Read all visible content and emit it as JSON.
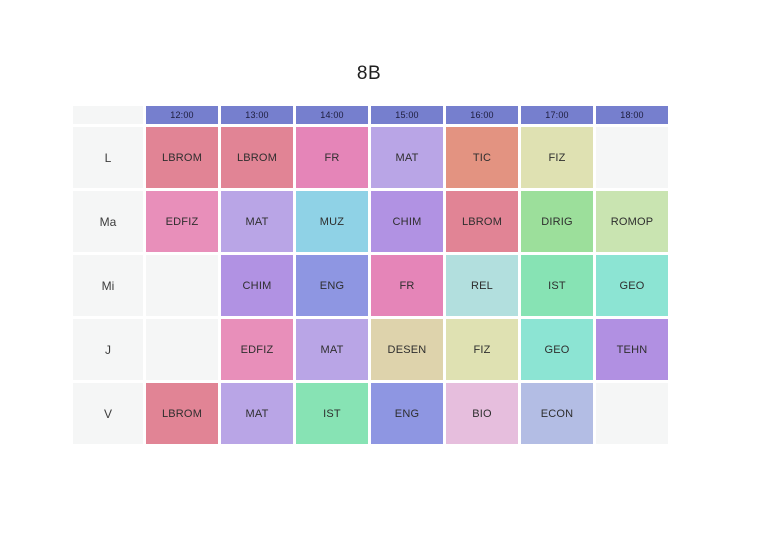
{
  "title": "8B",
  "colors": {
    "page_bg": "#ffffff",
    "header_bg": "#767fce",
    "header_text": "#1d1d3d",
    "day_cell_bg": "#f5f6f6",
    "day_text": "#3c3c3c",
    "empty_cell_bg": "#f5f6f6",
    "cell_text": "#2e2e2e"
  },
  "timetable": {
    "times": [
      "12:00",
      "13:00",
      "14:00",
      "15:00",
      "16:00",
      "17:00",
      "18:00"
    ],
    "days": [
      "L",
      "Ma",
      "Mi",
      "J",
      "V"
    ],
    "rows": [
      {
        "day": "L",
        "cells": [
          {
            "subject": "LBROM",
            "color": "#e18495"
          },
          {
            "subject": "LBROM",
            "color": "#e18495"
          },
          {
            "subject": "FR",
            "color": "#e585b8"
          },
          {
            "subject": "MAT",
            "color": "#b9a5e6"
          },
          {
            "subject": "TIC",
            "color": "#e39381"
          },
          {
            "subject": "FIZ",
            "color": "#dfe1b2"
          },
          null
        ]
      },
      {
        "day": "Ma",
        "cells": [
          {
            "subject": "EDFIZ",
            "color": "#e88fba"
          },
          {
            "subject": "MAT",
            "color": "#b9a5e6"
          },
          {
            "subject": "MUZ",
            "color": "#8fd2e6"
          },
          {
            "subject": "CHIM",
            "color": "#b192e3"
          },
          {
            "subject": "LBROM",
            "color": "#e18495"
          },
          {
            "subject": "DIRIG",
            "color": "#9cdf9b"
          },
          {
            "subject": "ROMOP",
            "color": "#c9e4b1"
          }
        ]
      },
      {
        "day": "Mi",
        "cells": [
          null,
          {
            "subject": "CHIM",
            "color": "#b192e3"
          },
          {
            "subject": "ENG",
            "color": "#8e96e2"
          },
          {
            "subject": "FR",
            "color": "#e585b8"
          },
          {
            "subject": "REL",
            "color": "#b2dfde"
          },
          {
            "subject": "IST",
            "color": "#87e3b4"
          },
          {
            "subject": "GEO",
            "color": "#8ce4d3"
          }
        ]
      },
      {
        "day": "J",
        "cells": [
          null,
          {
            "subject": "EDFIZ",
            "color": "#e88fba"
          },
          {
            "subject": "MAT",
            "color": "#b9a5e6"
          },
          {
            "subject": "DESEN",
            "color": "#ded3ac"
          },
          {
            "subject": "FIZ",
            "color": "#dfe1b2"
          },
          {
            "subject": "GEO",
            "color": "#8ce4d3"
          },
          {
            "subject": "TEHN",
            "color": "#b190e2"
          }
        ]
      },
      {
        "day": "V",
        "cells": [
          {
            "subject": "LBROM",
            "color": "#e18495"
          },
          {
            "subject": "MAT",
            "color": "#b9a5e6"
          },
          {
            "subject": "IST",
            "color": "#87e3b4"
          },
          {
            "subject": "ENG",
            "color": "#8e96e2"
          },
          {
            "subject": "BIO",
            "color": "#e6bedd"
          },
          {
            "subject": "ECON",
            "color": "#b3bde4"
          },
          null
        ]
      }
    ]
  }
}
